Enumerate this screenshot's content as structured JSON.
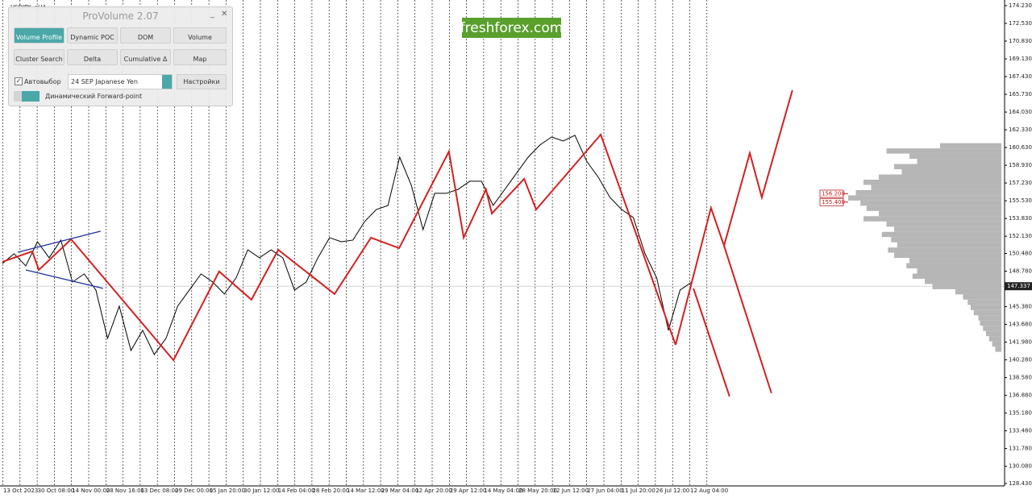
{
  "symbol": "USDJPY, eH4",
  "watermark": "freshforex.com",
  "panel": {
    "title": "ProVolume 2.07",
    "buttons": [
      "Volume Profile",
      "Dynamic POC",
      "DOM",
      "Volume",
      "Cluster Search",
      "Delta",
      "Cumulative Δ",
      "Map"
    ],
    "auto_select": "Автовыбор",
    "instrument": "24 SEP Japanese Yen",
    "settings": "Настройки",
    "forward_point": "Динамический Forward-point"
  },
  "chart_data": {
    "type": "line",
    "ylim": [
      128.43,
      174.23
    ],
    "yticks": [
      {
        "value": 174.23,
        "label": "174.230"
      },
      {
        "value": 172.53,
        "label": "172.530"
      },
      {
        "value": 170.83,
        "label": "170.830"
      },
      {
        "value": 169.13,
        "label": "169.130"
      },
      {
        "value": 167.43,
        "label": "167.430"
      },
      {
        "value": 165.73,
        "label": "165.730"
      },
      {
        "value": 164.03,
        "label": "164.030"
      },
      {
        "value": 162.33,
        "label": "162.330"
      },
      {
        "value": 160.63,
        "label": "160.630"
      },
      {
        "value": 158.93,
        "label": "158.930"
      },
      {
        "value": 157.23,
        "label": "157.230"
      },
      {
        "value": 155.53,
        "label": "155.530"
      },
      {
        "value": 153.83,
        "label": "153.830"
      },
      {
        "value": 152.13,
        "label": "152.130"
      },
      {
        "value": 150.48,
        "label": "150.480"
      },
      {
        "value": 148.78,
        "label": "148.780"
      },
      {
        "value": 145.38,
        "label": "145.380"
      },
      {
        "value": 143.68,
        "label": "143.680"
      },
      {
        "value": 141.98,
        "label": "141.980"
      },
      {
        "value": 140.28,
        "label": "140.280"
      },
      {
        "value": 138.58,
        "label": "138.580"
      },
      {
        "value": 136.88,
        "label": "136.880"
      },
      {
        "value": 135.18,
        "label": "135.180"
      },
      {
        "value": 133.48,
        "label": "133.480"
      },
      {
        "value": 131.78,
        "label": "131.780"
      },
      {
        "value": 130.08,
        "label": "130.080"
      },
      {
        "value": 128.43,
        "label": "128.430"
      }
    ],
    "categories": [
      "13 Oct 2023",
      "30 Oct 08:00",
      "14 Nov 00:00",
      "28 Nov 16:00",
      "13 Dec 08:00",
      "29 Dec 00:00",
      "15 Jan 20:00",
      "30 Jan 12:00",
      "14 Feb 04:00",
      "28 Feb 20:00",
      "14 Mar 12:00",
      "29 Mar 04:00",
      "12 Apr 20:00",
      "29 Apr 12:00",
      "14 May 04:00",
      "28 May 20:00",
      "12 Jun 12:00",
      "27 Jun 04:00",
      "11 Jul 20:00",
      "26 Jul 12:00",
      "12 Aug 04:00"
    ],
    "price": {
      "color": "#000000",
      "values": [
        149.52,
        150.45,
        149.29,
        151.6,
        150.06,
        151.76,
        147.74,
        148.52,
        146.97,
        142.34,
        145.43,
        141.18,
        143.11,
        140.79,
        142.34,
        145.43,
        146.97,
        148.52,
        147.74,
        146.59,
        148.13,
        150.83,
        150.06,
        150.83,
        150.06,
        146.97,
        147.74,
        150.06,
        151.99,
        151.6,
        151.76,
        153.54,
        154.69,
        155.08,
        159.71,
        157.01,
        152.76,
        156.24,
        156.24,
        156.62,
        157.4,
        157.4,
        155.08,
        156.62,
        158.17,
        159.71,
        160.87,
        161.64,
        161.26,
        161.8,
        159.33,
        157.78,
        155.85,
        154.69,
        153.92,
        150.45,
        148.13,
        143.11,
        146.97,
        147.74
      ]
    },
    "lines": [
      {
        "color": "#d42020",
        "x": [
          0,
          0.87,
          1.06,
          2,
          4.98,
          6.31,
          7.25,
          8.03,
          9.67,
          10.73,
          11.55,
          13,
          13.43,
          14.08,
          14.25,
          15.19,
          15.54,
          17.42,
          19.6
        ],
        "values": [
          149.67,
          150.68,
          148.9,
          151.84,
          140.25,
          148.75,
          146.05,
          150.83,
          146.59,
          151.99,
          150.99,
          160.25,
          151.99,
          156.62,
          154.31,
          157.63,
          154.69,
          161.87,
          141.72
        ]
      },
      {
        "color": "#d42020",
        "x": [
          19.6,
          20.63,
          21.01,
          21.76,
          22.11,
          23
        ],
        "values": [
          141.72,
          154.85,
          151.22,
          160.1,
          155.85,
          166.12
        ]
      },
      {
        "color": "#d42020",
        "x": [
          20.12,
          21.17
        ],
        "values": [
          147.13,
          136.78
        ]
      },
      {
        "color": "#d42020",
        "x": [
          21.01,
          22.39
        ],
        "values": [
          151.22,
          137.09
        ]
      },
      {
        "color": "#2030a0",
        "x": [
          0.45,
          2.86
        ],
        "values": [
          150.6,
          152.61
        ]
      },
      {
        "color": "#2030a0",
        "x": [
          0.68,
          2.93
        ],
        "values": [
          148.9,
          147.13
        ]
      }
    ],
    "profile": {
      "color": "#a9a9a9",
      "levels": [
        160.8,
        160.3,
        159.8,
        159.3,
        158.8,
        158.3,
        157.8,
        157.3,
        156.8,
        156.3,
        155.8,
        155.3,
        154.8,
        154.3,
        153.8,
        153.3,
        152.8,
        152.3,
        151.8,
        151.3,
        150.8,
        150.3,
        149.8,
        149.3,
        148.8,
        148.3,
        147.8,
        147.3,
        146.8,
        146.3,
        145.8,
        145.3,
        144.8,
        144.3,
        143.8,
        143.3,
        142.8,
        142.3,
        141.8,
        141.3
      ],
      "volumes": [
        40,
        75,
        60,
        55,
        70,
        65,
        80,
        90,
        85,
        95,
        100,
        92,
        88,
        80,
        90,
        75,
        70,
        78,
        72,
        68,
        74,
        70,
        60,
        62,
        55,
        58,
        50,
        45,
        30,
        25,
        22,
        20,
        18,
        15,
        14,
        12,
        10,
        8,
        6,
        4
      ]
    },
    "price_levels": [
      {
        "value": 156.2,
        "label": "156.200"
      },
      {
        "value": 155.4,
        "label": "155.400"
      }
    ],
    "current_price": 147.337
  }
}
